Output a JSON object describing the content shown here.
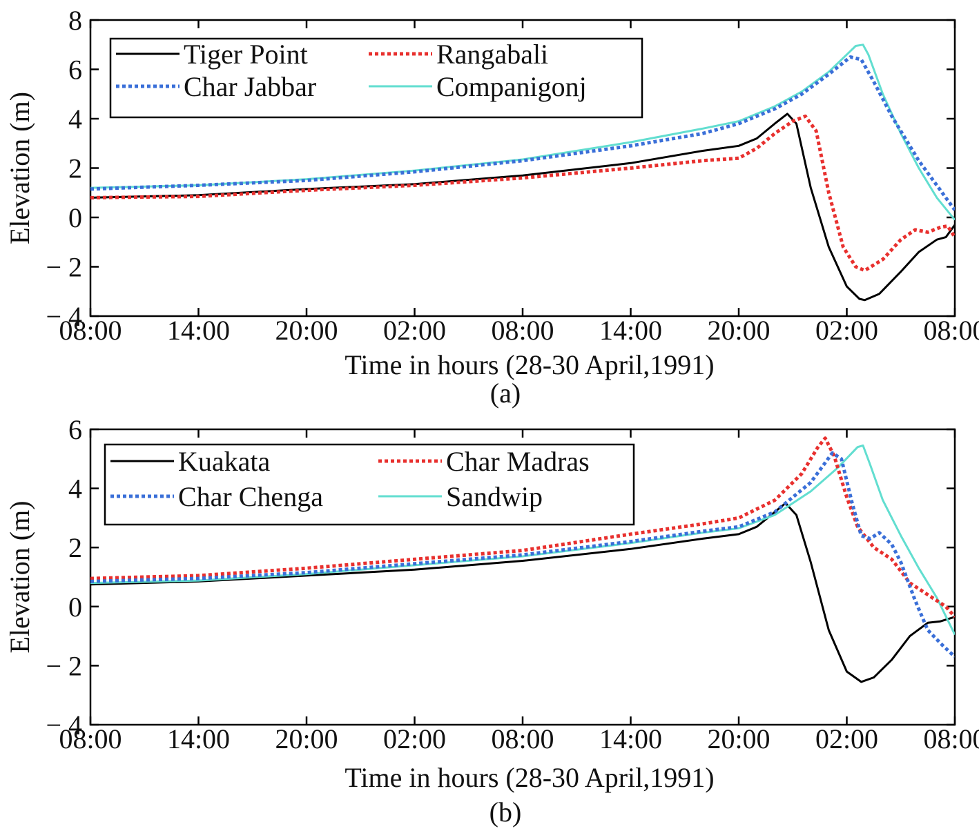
{
  "chart_data": [
    {
      "type": "line",
      "panel_label": "(a)",
      "xlabel": "Time in hours (28-30 April,1991)",
      "ylabel": "Elevation (m)",
      "x_unit": "hours from 08:00, 28 April 1991",
      "xlim": [
        0,
        48
      ],
      "ylim": [
        -4,
        8
      ],
      "x_ticks": [
        0,
        6,
        12,
        18,
        24,
        30,
        36,
        42,
        48
      ],
      "x_tick_labels": [
        "08:00",
        "14:00",
        "20:00",
        "02:00",
        "08:00",
        "14:00",
        "20:00",
        "02:00",
        "08:00"
      ],
      "y_ticks": [
        -4,
        -2,
        0,
        2,
        4,
        6,
        8
      ],
      "y_tick_labels": [
        "− 4",
        "− 2",
        "0",
        "2",
        "4",
        "6",
        "8"
      ],
      "grid": false,
      "legend_position": "top-left",
      "series": [
        {
          "name": "Tiger Point",
          "color": "#000000",
          "style": "solid",
          "points": [
            [
              0,
              0.8
            ],
            [
              6,
              0.9
            ],
            [
              12,
              1.15
            ],
            [
              18,
              1.35
            ],
            [
              24,
              1.7
            ],
            [
              30,
              2.2
            ],
            [
              34,
              2.7
            ],
            [
              36,
              2.9
            ],
            [
              37,
              3.2
            ],
            [
              38,
              3.8
            ],
            [
              38.7,
              4.2
            ],
            [
              39.2,
              3.8
            ],
            [
              40,
              1.2
            ],
            [
              41,
              -1.2
            ],
            [
              42,
              -2.8
            ],
            [
              42.7,
              -3.3
            ],
            [
              43,
              -3.35
            ],
            [
              43.8,
              -3.1
            ],
            [
              45,
              -2.2
            ],
            [
              46,
              -1.4
            ],
            [
              47,
              -0.9
            ],
            [
              47.5,
              -0.8
            ],
            [
              48,
              -0.3
            ]
          ]
        },
        {
          "name": "Rangabali",
          "color": "#e8302e",
          "style": "dotted",
          "points": [
            [
              0,
              0.8
            ],
            [
              6,
              0.85
            ],
            [
              12,
              1.1
            ],
            [
              18,
              1.3
            ],
            [
              24,
              1.6
            ],
            [
              30,
              2.0
            ],
            [
              34,
              2.3
            ],
            [
              36,
              2.4
            ],
            [
              37,
              2.8
            ],
            [
              38,
              3.4
            ],
            [
              39,
              3.9
            ],
            [
              39.7,
              4.1
            ],
            [
              40.3,
              3.5
            ],
            [
              41,
              1.0
            ],
            [
              41.8,
              -1.2
            ],
            [
              42.5,
              -2.0
            ],
            [
              43,
              -2.15
            ],
            [
              44,
              -1.7
            ],
            [
              45,
              -0.9
            ],
            [
              45.8,
              -0.5
            ],
            [
              46.5,
              -0.6
            ],
            [
              47.2,
              -0.4
            ],
            [
              47.6,
              -0.35
            ],
            [
              48,
              -0.8
            ]
          ]
        },
        {
          "name": "Char Jabbar",
          "color": "#3a6fd8",
          "style": "dotted",
          "points": [
            [
              0,
              1.15
            ],
            [
              6,
              1.3
            ],
            [
              12,
              1.5
            ],
            [
              18,
              1.85
            ],
            [
              24,
              2.3
            ],
            [
              30,
              2.9
            ],
            [
              34,
              3.4
            ],
            [
              36,
              3.8
            ],
            [
              38,
              4.4
            ],
            [
              39.5,
              5.0
            ],
            [
              41,
              5.8
            ],
            [
              42.2,
              6.5
            ],
            [
              42.8,
              6.4
            ],
            [
              43.5,
              5.5
            ],
            [
              44.5,
              4.1
            ],
            [
              46,
              2.3
            ],
            [
              47,
              1.3
            ],
            [
              48,
              0.3
            ]
          ]
        },
        {
          "name": "Companigonj",
          "color": "#62ded0",
          "style": "solid",
          "points": [
            [
              0,
              1.2
            ],
            [
              6,
              1.3
            ],
            [
              12,
              1.55
            ],
            [
              18,
              1.9
            ],
            [
              24,
              2.35
            ],
            [
              30,
              3.05
            ],
            [
              34,
              3.6
            ],
            [
              36,
              3.9
            ],
            [
              38,
              4.5
            ],
            [
              39.5,
              5.1
            ],
            [
              41,
              5.9
            ],
            [
              42,
              6.6
            ],
            [
              42.5,
              6.95
            ],
            [
              42.9,
              7.0
            ],
            [
              43.2,
              6.6
            ],
            [
              44,
              5.0
            ],
            [
              45,
              3.4
            ],
            [
              46,
              2.0
            ],
            [
              47,
              0.8
            ],
            [
              48,
              -0.1
            ]
          ]
        }
      ]
    },
    {
      "type": "line",
      "panel_label": "(b)",
      "xlabel": "Time in hours (28-30 April,1991)",
      "ylabel": "Elevation (m)",
      "x_unit": "hours from 08:00, 28 April 1991",
      "xlim": [
        0,
        48
      ],
      "ylim": [
        -4,
        6
      ],
      "x_ticks": [
        0,
        6,
        12,
        18,
        24,
        30,
        36,
        42,
        48
      ],
      "x_tick_labels": [
        "08:00",
        "14:00",
        "20:00",
        "02:00",
        "08:00",
        "14:00",
        "20:00",
        "02:00",
        "08:00"
      ],
      "y_ticks": [
        -4,
        -2,
        0,
        2,
        4,
        6
      ],
      "y_tick_labels": [
        "− 4",
        "− 2",
        "0",
        "2",
        "4",
        "6"
      ],
      "grid": false,
      "legend_position": "top-left",
      "series": [
        {
          "name": "Kuakata",
          "color": "#000000",
          "style": "solid",
          "points": [
            [
              0,
              0.75
            ],
            [
              6,
              0.85
            ],
            [
              12,
              1.05
            ],
            [
              18,
              1.25
            ],
            [
              24,
              1.55
            ],
            [
              30,
              1.95
            ],
            [
              34,
              2.3
            ],
            [
              36,
              2.45
            ],
            [
              37,
              2.7
            ],
            [
              38,
              3.2
            ],
            [
              38.6,
              3.5
            ],
            [
              39.2,
              3.1
            ],
            [
              40,
              1.5
            ],
            [
              41,
              -0.8
            ],
            [
              42,
              -2.2
            ],
            [
              42.8,
              -2.55
            ],
            [
              43.5,
              -2.4
            ],
            [
              44.5,
              -1.8
            ],
            [
              45.5,
              -1.0
            ],
            [
              46.5,
              -0.55
            ],
            [
              47.2,
              -0.5
            ],
            [
              48,
              -0.35
            ]
          ]
        },
        {
          "name": "Char Madras",
          "color": "#e8302e",
          "style": "dotted",
          "points": [
            [
              0,
              0.95
            ],
            [
              6,
              1.05
            ],
            [
              12,
              1.3
            ],
            [
              18,
              1.6
            ],
            [
              24,
              1.9
            ],
            [
              30,
              2.45
            ],
            [
              34,
              2.8
            ],
            [
              36,
              3.0
            ],
            [
              38,
              3.6
            ],
            [
              39.5,
              4.5
            ],
            [
              40.4,
              5.4
            ],
            [
              40.8,
              5.7
            ],
            [
              41.3,
              5.1
            ],
            [
              42,
              3.7
            ],
            [
              42.6,
              2.7
            ],
            [
              43.5,
              2.0
            ],
            [
              44.5,
              1.6
            ],
            [
              45.5,
              0.8
            ],
            [
              46.5,
              0.4
            ],
            [
              47.5,
              0.0
            ],
            [
              48,
              -0.35
            ]
          ]
        },
        {
          "name": "Char Chenga",
          "color": "#3a6fd8",
          "style": "dotted",
          "points": [
            [
              0,
              0.85
            ],
            [
              6,
              0.95
            ],
            [
              12,
              1.15
            ],
            [
              18,
              1.45
            ],
            [
              24,
              1.75
            ],
            [
              30,
              2.2
            ],
            [
              34,
              2.55
            ],
            [
              36,
              2.7
            ],
            [
              38,
              3.2
            ],
            [
              40,
              4.2
            ],
            [
              41.2,
              5.2
            ],
            [
              41.7,
              5.0
            ],
            [
              42.3,
              3.5
            ],
            [
              42.8,
              2.4
            ],
            [
              43.3,
              2.3
            ],
            [
              43.8,
              2.5
            ],
            [
              44.5,
              2.1
            ],
            [
              45,
              1.5
            ],
            [
              45.8,
              0.2
            ],
            [
              46.5,
              -0.8
            ],
            [
              47.3,
              -1.3
            ],
            [
              48,
              -1.7
            ]
          ]
        },
        {
          "name": "Sandwip",
          "color": "#62ded0",
          "style": "solid",
          "points": [
            [
              0,
              0.8
            ],
            [
              6,
              0.88
            ],
            [
              12,
              1.1
            ],
            [
              18,
              1.4
            ],
            [
              24,
              1.7
            ],
            [
              30,
              2.15
            ],
            [
              34,
              2.5
            ],
            [
              36,
              2.65
            ],
            [
              38,
              3.1
            ],
            [
              40,
              3.9
            ],
            [
              41.5,
              4.7
            ],
            [
              42.6,
              5.4
            ],
            [
              42.9,
              5.45
            ],
            [
              43.3,
              4.8
            ],
            [
              44,
              3.6
            ],
            [
              45,
              2.4
            ],
            [
              46,
              1.3
            ],
            [
              47,
              0.3
            ],
            [
              48,
              -0.95
            ]
          ]
        }
      ]
    }
  ]
}
